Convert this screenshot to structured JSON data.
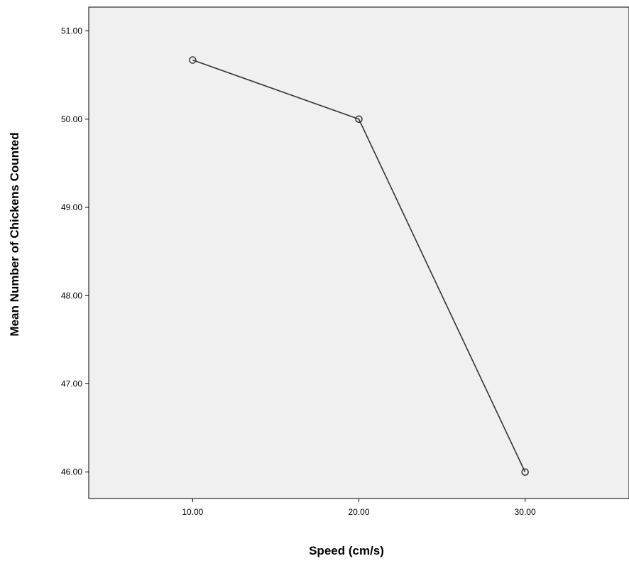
{
  "chart_data": {
    "type": "line",
    "title": "",
    "xlabel": "Speed (cm/s)",
    "ylabel": "Mean Number of Chickens Counted",
    "x": [
      10,
      20,
      30
    ],
    "x_tick_labels": [
      "10.00",
      "20.00",
      "30.00"
    ],
    "xlim": [
      3.75,
      36.25
    ],
    "y_ticks": [
      46,
      47,
      48,
      49,
      50,
      51
    ],
    "y_tick_labels": [
      "46.00",
      "47.00",
      "48.00",
      "49.00",
      "50.00",
      "51.00"
    ],
    "ylim": [
      45.7,
      51.27
    ],
    "series": [
      {
        "values": [
          50.67,
          50.0,
          46.0
        ],
        "marker": "hollow-circle"
      }
    ],
    "grid": false,
    "legend": "none",
    "colors": {
      "plot_background": "#f0f0f0",
      "line": "#333333",
      "marker_stroke": "#333333",
      "axis": "#000000"
    }
  }
}
